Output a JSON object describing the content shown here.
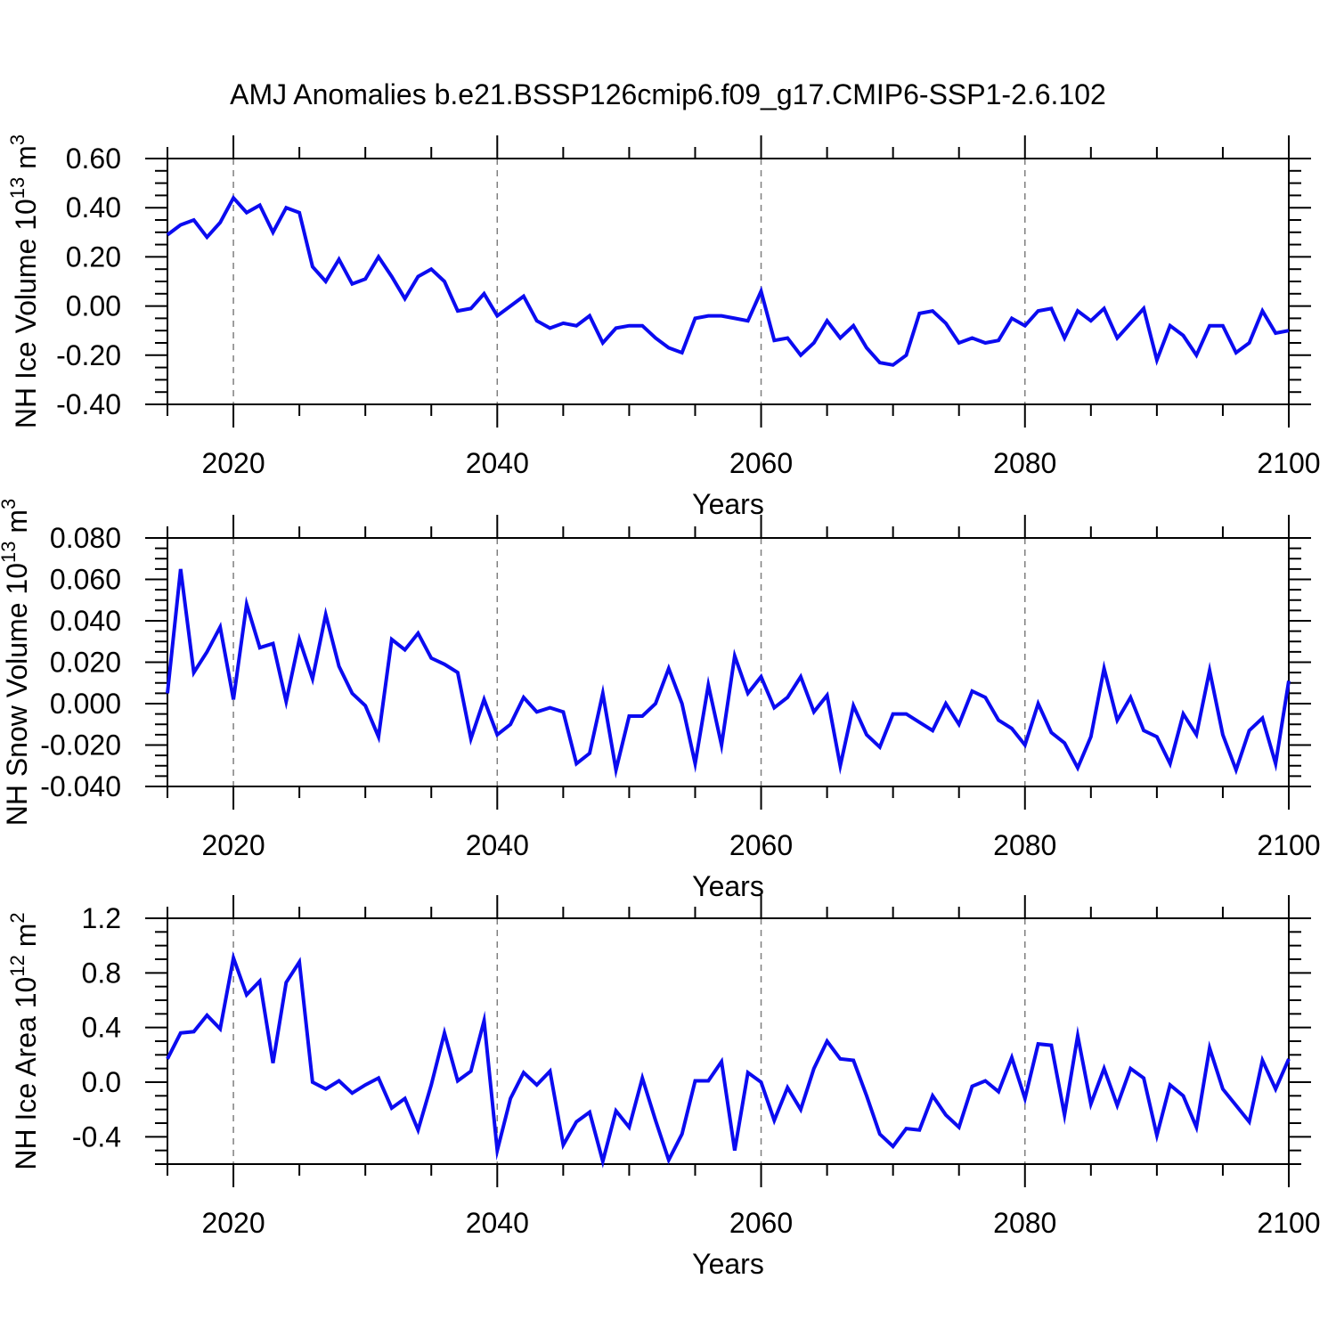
{
  "title": "AMJ Anomalies b.e21.BSSP126cmip6.f09_g17.CMIP6-SSP1-2.6.102",
  "style": {
    "line_color": "#0b0bf0",
    "grid_color": "#7f7f7f",
    "axis_color": "#000000",
    "background": "#ffffff"
  },
  "chart_data": [
    {
      "type": "line",
      "name": "nh-ice-volume",
      "ylabel": "NH Ice Volume 10^{13} m^{3}",
      "xlabel": "Years",
      "x_start": 2015,
      "x_end": 2100,
      "xlim": [
        2015,
        2100
      ],
      "ylim": [
        -0.4,
        0.6
      ],
      "xticks": [
        2020,
        2040,
        2060,
        2080,
        2100
      ],
      "xtick_labels": [
        "2020",
        "2040",
        "2060",
        "2080",
        "2100"
      ],
      "xtick_minor_start": 2015,
      "xtick_minor_step": 5,
      "ytick_values": [
        0.6,
        0.4,
        0.2,
        0.0,
        -0.2,
        -0.4
      ],
      "ytick_labels": [
        "0.60",
        "0.40",
        "0.20",
        "0.00",
        "-0.20",
        "-0.40"
      ],
      "ytick_minor_step": 0.05,
      "gridlines_x": [
        2020,
        2040,
        2060,
        2080
      ],
      "grid_dashed": true,
      "legend": "none",
      "values": [
        0.29,
        0.33,
        0.35,
        0.28,
        0.34,
        0.44,
        0.38,
        0.41,
        0.3,
        0.4,
        0.38,
        0.16,
        0.1,
        0.19,
        0.09,
        0.11,
        0.2,
        0.12,
        0.03,
        0.12,
        0.15,
        0.1,
        -0.02,
        -0.01,
        0.05,
        -0.04,
        0.0,
        0.04,
        -0.06,
        -0.09,
        -0.07,
        -0.08,
        -0.04,
        -0.15,
        -0.09,
        -0.08,
        -0.08,
        -0.13,
        -0.17,
        -0.19,
        -0.05,
        -0.04,
        -0.04,
        -0.05,
        -0.06,
        0.06,
        -0.14,
        -0.13,
        -0.2,
        -0.15,
        -0.06,
        -0.13,
        -0.08,
        -0.17,
        -0.23,
        -0.24,
        -0.2,
        -0.03,
        -0.02,
        -0.07,
        -0.15,
        -0.13,
        -0.15,
        -0.14,
        -0.05,
        -0.08,
        -0.02,
        -0.01,
        -0.13,
        -0.02,
        -0.06,
        -0.01,
        -0.13,
        -0.07,
        -0.01,
        -0.22,
        -0.08,
        -0.12,
        -0.2,
        -0.08,
        -0.08,
        -0.19,
        -0.15,
        -0.02,
        -0.11,
        -0.1
      ]
    },
    {
      "type": "line",
      "name": "nh-snow-volume",
      "ylabel": "NH Snow Volume 10^{13} m^{3}",
      "xlabel": "Years",
      "x_start": 2015,
      "x_end": 2100,
      "xlim": [
        2015,
        2100
      ],
      "ylim": [
        -0.04,
        0.08
      ],
      "xticks": [
        2020,
        2040,
        2060,
        2080,
        2100
      ],
      "xtick_labels": [
        "2020",
        "2040",
        "2060",
        "2080",
        "2100"
      ],
      "xtick_minor_start": 2015,
      "xtick_minor_step": 5,
      "ytick_values": [
        0.08,
        0.06,
        0.04,
        0.02,
        0.0,
        -0.02,
        -0.04
      ],
      "ytick_labels": [
        "0.080",
        "0.060",
        "0.040",
        "0.020",
        "0.000",
        "-0.020",
        "-0.040"
      ],
      "ytick_minor_step": 0.005,
      "gridlines_x": [
        2020,
        2040,
        2060,
        2080
      ],
      "grid_dashed": true,
      "legend": "none",
      "values": [
        0.005,
        0.065,
        0.015,
        0.025,
        0.037,
        0.002,
        0.048,
        0.027,
        0.029,
        0.001,
        0.031,
        0.012,
        0.043,
        0.018,
        0.005,
        -0.001,
        -0.016,
        0.031,
        0.026,
        0.034,
        0.022,
        0.019,
        0.015,
        -0.017,
        0.002,
        -0.015,
        -0.01,
        0.003,
        -0.004,
        -0.002,
        -0.004,
        -0.029,
        -0.024,
        0.005,
        -0.032,
        -0.006,
        -0.006,
        0.0,
        0.017,
        0.0,
        -0.029,
        0.009,
        -0.02,
        0.023,
        0.005,
        0.013,
        -0.002,
        0.003,
        0.013,
        -0.004,
        0.004,
        -0.03,
        -0.001,
        -0.015,
        -0.021,
        -0.005,
        -0.005,
        -0.009,
        -0.013,
        0.0,
        -0.01,
        0.006,
        0.003,
        -0.008,
        -0.012,
        -0.02,
        0.0,
        -0.014,
        -0.019,
        -0.031,
        -0.016,
        0.017,
        -0.008,
        0.003,
        -0.013,
        -0.016,
        -0.029,
        -0.005,
        -0.015,
        0.016,
        -0.015,
        -0.032,
        -0.013,
        -0.007,
        -0.029,
        0.011
      ]
    },
    {
      "type": "line",
      "name": "nh-ice-area",
      "ylabel": "NH Ice Area 10^{12} m^{2}",
      "xlabel": "Years",
      "x_start": 2015,
      "x_end": 2100,
      "xlim": [
        2015,
        2100
      ],
      "ylim": [
        -0.6,
        1.2
      ],
      "xticks": [
        2020,
        2040,
        2060,
        2080,
        2100
      ],
      "xtick_labels": [
        "2020",
        "2040",
        "2060",
        "2080",
        "2100"
      ],
      "xtick_minor_start": 2015,
      "xtick_minor_step": 5,
      "ytick_values": [
        1.2,
        0.8,
        0.4,
        0.0,
        -0.4
      ],
      "ytick_labels": [
        "1.2",
        "0.8",
        "0.4",
        "0.0",
        "-0.4"
      ],
      "ytick_minor_step": 0.1,
      "gridlines_x": [
        2020,
        2040,
        2060,
        2080
      ],
      "grid_dashed": true,
      "legend": "none",
      "values": [
        0.17,
        0.36,
        0.37,
        0.49,
        0.39,
        0.91,
        0.64,
        0.74,
        0.14,
        0.73,
        0.88,
        0.0,
        -0.05,
        0.01,
        -0.08,
        -0.02,
        0.03,
        -0.19,
        -0.12,
        -0.35,
        -0.02,
        0.36,
        0.01,
        0.08,
        0.45,
        -0.5,
        -0.12,
        0.07,
        -0.02,
        0.08,
        -0.46,
        -0.29,
        -0.22,
        -0.58,
        -0.21,
        -0.33,
        0.03,
        -0.28,
        -0.57,
        -0.38,
        0.01,
        0.01,
        0.15,
        -0.5,
        0.07,
        0.0,
        -0.28,
        -0.04,
        -0.2,
        0.1,
        0.3,
        0.17,
        0.16,
        -0.1,
        -0.38,
        -0.47,
        -0.34,
        -0.35,
        -0.1,
        -0.24,
        -0.33,
        -0.03,
        0.01,
        -0.07,
        0.18,
        -0.12,
        0.28,
        0.27,
        -0.24,
        0.34,
        -0.16,
        0.1,
        -0.17,
        0.1,
        0.03,
        -0.39,
        -0.02,
        -0.1,
        -0.33,
        0.25,
        -0.05,
        -0.17,
        -0.29,
        0.16,
        -0.05,
        0.17
      ]
    }
  ]
}
